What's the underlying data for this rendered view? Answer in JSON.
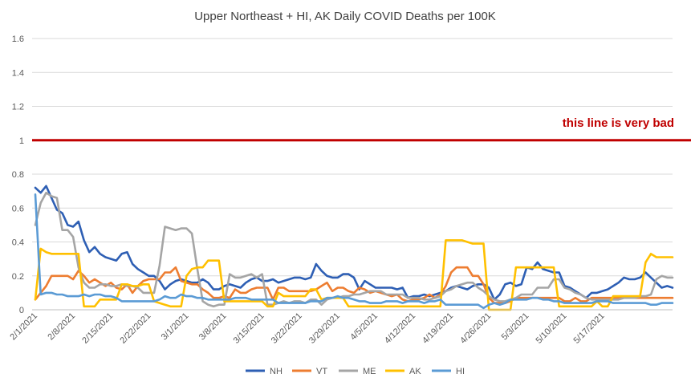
{
  "chart_data": {
    "type": "line",
    "title": "Upper Northeast + HI, AK Daily COVID Deaths per 100K",
    "xlabel": "",
    "ylabel": "",
    "ylim": [
      0,
      1.6
    ],
    "yticks": [
      "0",
      "0.2",
      "0.4",
      "0.6",
      "0.8",
      "1",
      "1.2",
      "1.4",
      "1.6"
    ],
    "x_start": "2/1/2021",
    "x_end": "5/23/2021",
    "xtick_labels": [
      "2/1/2021",
      "2/8/2021",
      "2/15/2021",
      "2/22/2021",
      "3/1/2021",
      "3/8/2021",
      "3/15/2021",
      "3/22/2021",
      "3/29/2021",
      "4/5/2021",
      "4/12/2021",
      "4/19/2021",
      "4/26/2021",
      "5/3/2021",
      "5/10/2021",
      "5/17/2021"
    ],
    "grid": true,
    "legend_position": "bottom",
    "reference_line": {
      "value": 1.0,
      "label": "this line is very bad",
      "color": "#c00000"
    },
    "series": [
      {
        "name": "NH",
        "color": "#2e5fb4",
        "values": [
          0.72,
          0.69,
          0.73,
          0.66,
          0.59,
          0.57,
          0.5,
          0.49,
          0.52,
          0.41,
          0.34,
          0.37,
          0.33,
          0.31,
          0.3,
          0.29,
          0.33,
          0.34,
          0.27,
          0.24,
          0.22,
          0.2,
          0.2,
          0.17,
          0.12,
          0.15,
          0.17,
          0.18,
          0.17,
          0.16,
          0.16,
          0.18,
          0.16,
          0.12,
          0.12,
          0.14,
          0.15,
          0.14,
          0.13,
          0.16,
          0.18,
          0.19,
          0.17,
          0.17,
          0.18,
          0.16,
          0.17,
          0.18,
          0.19,
          0.19,
          0.18,
          0.19,
          0.27,
          0.23,
          0.2,
          0.19,
          0.19,
          0.21,
          0.21,
          0.19,
          0.12,
          0.17,
          0.15,
          0.13,
          0.13,
          0.13,
          0.13,
          0.12,
          0.13,
          0.07,
          0.08,
          0.08,
          0.09,
          0.08,
          0.09,
          0.1,
          0.11,
          0.13,
          0.14,
          0.13,
          0.12,
          0.14,
          0.15,
          0.15,
          0.13,
          0.06,
          0.09,
          0.15,
          0.16,
          0.14,
          0.15,
          0.25,
          0.24,
          0.28,
          0.24,
          0.23,
          0.22,
          0.22,
          0.14,
          0.13,
          0.11,
          0.09,
          0.07,
          0.1,
          0.1,
          0.11,
          0.12,
          0.14,
          0.16,
          0.19,
          0.18,
          0.18,
          0.19,
          0.22,
          0.19,
          0.16,
          0.13,
          0.14,
          0.13
        ]
      },
      {
        "name": "VT",
        "color": "#ed7d31",
        "values": [
          0.06,
          0.1,
          0.14,
          0.2,
          0.2,
          0.2,
          0.2,
          0.18,
          0.23,
          0.2,
          0.16,
          0.18,
          0.16,
          0.14,
          0.16,
          0.13,
          0.12,
          0.15,
          0.1,
          0.14,
          0.17,
          0.18,
          0.18,
          0.18,
          0.22,
          0.22,
          0.25,
          0.17,
          0.16,
          0.15,
          0.15,
          0.12,
          0.1,
          0.07,
          0.07,
          0.08,
          0.07,
          0.12,
          0.1,
          0.1,
          0.12,
          0.13,
          0.13,
          0.13,
          0.06,
          0.13,
          0.13,
          0.11,
          0.11,
          0.11,
          0.11,
          0.11,
          0.12,
          0.14,
          0.16,
          0.11,
          0.13,
          0.13,
          0.11,
          0.1,
          0.13,
          0.12,
          0.1,
          0.11,
          0.1,
          0.09,
          0.08,
          0.09,
          0.06,
          0.05,
          0.06,
          0.06,
          0.07,
          0.09,
          0.07,
          0.09,
          0.14,
          0.22,
          0.25,
          0.25,
          0.25,
          0.2,
          0.2,
          0.15,
          0.07,
          0.04,
          0.04,
          0.04,
          0.05,
          0.07,
          0.07,
          0.07,
          0.07,
          0.07,
          0.07,
          0.07,
          0.07,
          0.07,
          0.05,
          0.05,
          0.07,
          0.05,
          0.05,
          0.07,
          0.07,
          0.07,
          0.07,
          0.07,
          0.07,
          0.07,
          0.07,
          0.07,
          0.07,
          0.07,
          0.07,
          0.07,
          0.07,
          0.07,
          0.07
        ]
      },
      {
        "name": "ME",
        "color": "#a5a5a5",
        "values": [
          0.5,
          0.63,
          0.69,
          0.67,
          0.66,
          0.47,
          0.47,
          0.43,
          0.25,
          0.16,
          0.13,
          0.13,
          0.15,
          0.15,
          0.14,
          0.14,
          0.15,
          0.14,
          0.14,
          0.13,
          0.1,
          0.1,
          0.1,
          0.26,
          0.49,
          0.48,
          0.47,
          0.48,
          0.48,
          0.45,
          0.24,
          0.05,
          0.03,
          0.02,
          0.03,
          0.03,
          0.21,
          0.19,
          0.19,
          0.2,
          0.21,
          0.19,
          0.21,
          0.03,
          0.03,
          0.04,
          0.05,
          0.04,
          0.05,
          0.05,
          0.04,
          0.06,
          0.06,
          0.03,
          0.06,
          0.07,
          0.07,
          0.08,
          0.08,
          0.09,
          0.09,
          0.1,
          0.11,
          0.11,
          0.11,
          0.09,
          0.09,
          0.09,
          0.09,
          0.07,
          0.07,
          0.07,
          0.06,
          0.06,
          0.07,
          0.08,
          0.11,
          0.12,
          0.14,
          0.15,
          0.16,
          0.16,
          0.13,
          0.11,
          0.08,
          0.06,
          0.05,
          0.05,
          0.06,
          0.07,
          0.09,
          0.09,
          0.09,
          0.13,
          0.13,
          0.13,
          0.18,
          0.18,
          0.13,
          0.12,
          0.1,
          0.09,
          0.07,
          0.06,
          0.06,
          0.06,
          0.06,
          0.06,
          0.06,
          0.07,
          0.07,
          0.07,
          0.08,
          0.08,
          0.09,
          0.18,
          0.2,
          0.19,
          0.19
        ]
      },
      {
        "name": "AK",
        "color": "#ffc000",
        "values": [
          0.06,
          0.36,
          0.34,
          0.33,
          0.33,
          0.33,
          0.33,
          0.33,
          0.33,
          0.02,
          0.02,
          0.02,
          0.06,
          0.06,
          0.06,
          0.06,
          0.15,
          0.15,
          0.14,
          0.14,
          0.15,
          0.15,
          0.05,
          0.04,
          0.03,
          0.02,
          0.02,
          0.02,
          0.2,
          0.24,
          0.25,
          0.25,
          0.29,
          0.29,
          0.29,
          0.05,
          0.05,
          0.05,
          0.05,
          0.05,
          0.05,
          0.05,
          0.05,
          0.02,
          0.02,
          0.1,
          0.08,
          0.08,
          0.08,
          0.08,
          0.08,
          0.12,
          0.12,
          0.06,
          0.07,
          0.07,
          0.07,
          0.07,
          0.02,
          0.02,
          0.02,
          0.02,
          0.02,
          0.02,
          0.02,
          0.02,
          0.02,
          0.02,
          0.02,
          0.02,
          0.02,
          0.02,
          0.02,
          0.02,
          0.02,
          0.02,
          0.41,
          0.41,
          0.41,
          0.41,
          0.4,
          0.39,
          0.39,
          0.39,
          0.0,
          0.0,
          0.0,
          0.0,
          0.0,
          0.25,
          0.25,
          0.25,
          0.25,
          0.25,
          0.25,
          0.25,
          0.25,
          0.02,
          0.02,
          0.02,
          0.02,
          0.02,
          0.02,
          0.02,
          0.05,
          0.02,
          0.02,
          0.08,
          0.08,
          0.08,
          0.08,
          0.08,
          0.08,
          0.28,
          0.33,
          0.31,
          0.31,
          0.31,
          0.31
        ]
      },
      {
        "name": "HI",
        "color": "#5b9bd5",
        "values": [
          0.68,
          0.09,
          0.1,
          0.1,
          0.09,
          0.09,
          0.08,
          0.08,
          0.08,
          0.09,
          0.08,
          0.09,
          0.09,
          0.08,
          0.08,
          0.07,
          0.05,
          0.05,
          0.05,
          0.05,
          0.05,
          0.05,
          0.05,
          0.06,
          0.08,
          0.07,
          0.07,
          0.09,
          0.08,
          0.08,
          0.07,
          0.07,
          0.06,
          0.06,
          0.06,
          0.06,
          0.06,
          0.07,
          0.07,
          0.07,
          0.06,
          0.06,
          0.06,
          0.06,
          0.06,
          0.04,
          0.04,
          0.04,
          0.04,
          0.04,
          0.04,
          0.05,
          0.05,
          0.05,
          0.07,
          0.07,
          0.08,
          0.07,
          0.07,
          0.06,
          0.05,
          0.05,
          0.04,
          0.04,
          0.04,
          0.05,
          0.05,
          0.05,
          0.04,
          0.05,
          0.05,
          0.05,
          0.04,
          0.05,
          0.05,
          0.06,
          0.03,
          0.03,
          0.03,
          0.03,
          0.03,
          0.03,
          0.03,
          0.01,
          0.03,
          0.04,
          0.03,
          0.04,
          0.06,
          0.06,
          0.06,
          0.06,
          0.07,
          0.07,
          0.06,
          0.06,
          0.05,
          0.05,
          0.04,
          0.04,
          0.04,
          0.04,
          0.04,
          0.04,
          0.05,
          0.05,
          0.05,
          0.04,
          0.04,
          0.04,
          0.04,
          0.04,
          0.04,
          0.04,
          0.03,
          0.03,
          0.04,
          0.04,
          0.04
        ]
      }
    ]
  }
}
